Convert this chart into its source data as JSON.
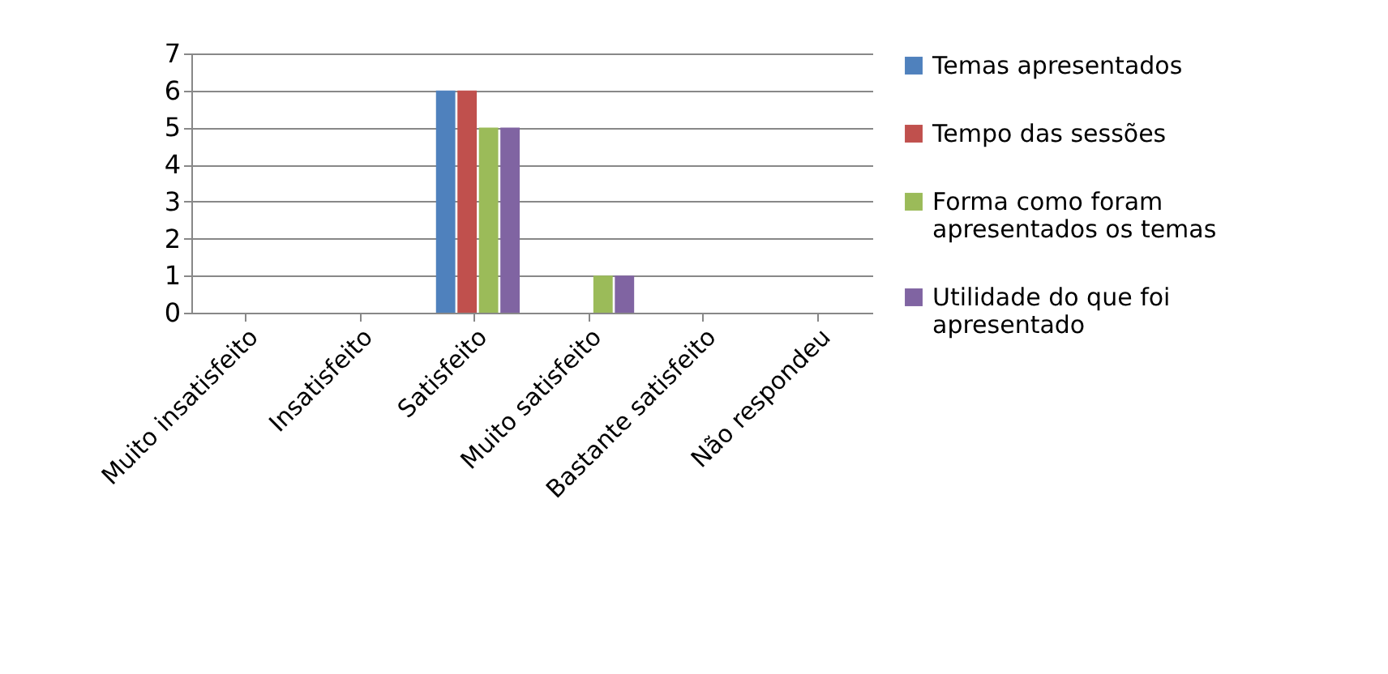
{
  "chart_data": {
    "type": "bar",
    "categories": [
      "Muito insatisfeito",
      "Insatisfeito",
      "Satisfeito",
      "Muito satisfeito",
      "Bastante satisfeito",
      "Não respondeu"
    ],
    "series": [
      {
        "name": "Temas apresentados",
        "color": "#4f81bd",
        "values": [
          0,
          0,
          6,
          0,
          0,
          0
        ]
      },
      {
        "name": "Tempo das sessões",
        "color": "#c0504d",
        "values": [
          0,
          0,
          6,
          0,
          0,
          0
        ]
      },
      {
        "name": "Forma como foram apresentados os temas",
        "color": "#9bbb59",
        "values": [
          0,
          0,
          5,
          1,
          0,
          0
        ]
      },
      {
        "name": "Utilidade do que foi apresentado",
        "color": "#8064a2",
        "values": [
          0,
          0,
          5,
          1,
          0,
          0
        ]
      }
    ],
    "ylim": [
      0,
      7
    ],
    "yticks": [
      0,
      1,
      2,
      3,
      4,
      5,
      6,
      7
    ],
    "grid": "y",
    "legend": "right"
  }
}
